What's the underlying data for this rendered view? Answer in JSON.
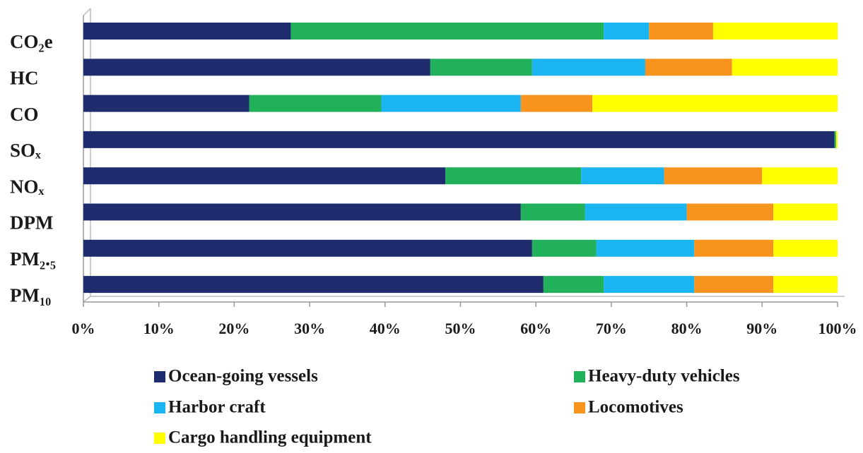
{
  "chart_data": {
    "type": "stacked-bar-horizontal",
    "categories": [
      "CO₂e",
      "HC",
      "CO",
      "SOₓ",
      "NOₓ",
      "DPM",
      "PM₂.₅",
      "PM₁₀"
    ],
    "series": [
      {
        "name": "Ocean-going vessels",
        "color": "#1f2d6e",
        "values": [
          27.5,
          46,
          22,
          99.6,
          48,
          58,
          59.5,
          61
        ]
      },
      {
        "name": "Heavy-duty vehicles",
        "color": "#20b15a",
        "values": [
          41.5,
          13.5,
          17.5,
          0.2,
          18,
          8.5,
          8.5,
          8
        ]
      },
      {
        "name": "Harbor craft",
        "color": "#1ab4f0",
        "values": [
          6,
          15,
          18.5,
          0,
          11,
          13.5,
          13,
          12
        ]
      },
      {
        "name": "Locomotives",
        "color": "#f7941d",
        "values": [
          8.5,
          11.5,
          9.5,
          0,
          13,
          11.5,
          10.5,
          10.5
        ]
      },
      {
        "name": "Cargo handling equipment",
        "color": "#ffff00",
        "values": [
          16.5,
          14,
          32.5,
          0.2,
          10,
          8.5,
          8.5,
          8.5
        ]
      }
    ],
    "xlim": [
      0,
      100
    ],
    "xticks": [
      {
        "value": 0,
        "label": "0%"
      },
      {
        "value": 10,
        "label": "10%"
      },
      {
        "value": 20,
        "label": "20%"
      },
      {
        "value": 30,
        "label": "30%"
      },
      {
        "value": 40,
        "label": "40%"
      },
      {
        "value": 50,
        "label": "50%"
      },
      {
        "value": 60,
        "label": "60%"
      },
      {
        "value": 70,
        "label": "70%"
      },
      {
        "value": 80,
        "label": "80%"
      },
      {
        "value": 90,
        "label": "90%"
      },
      {
        "value": 100,
        "label": "100%"
      }
    ]
  }
}
